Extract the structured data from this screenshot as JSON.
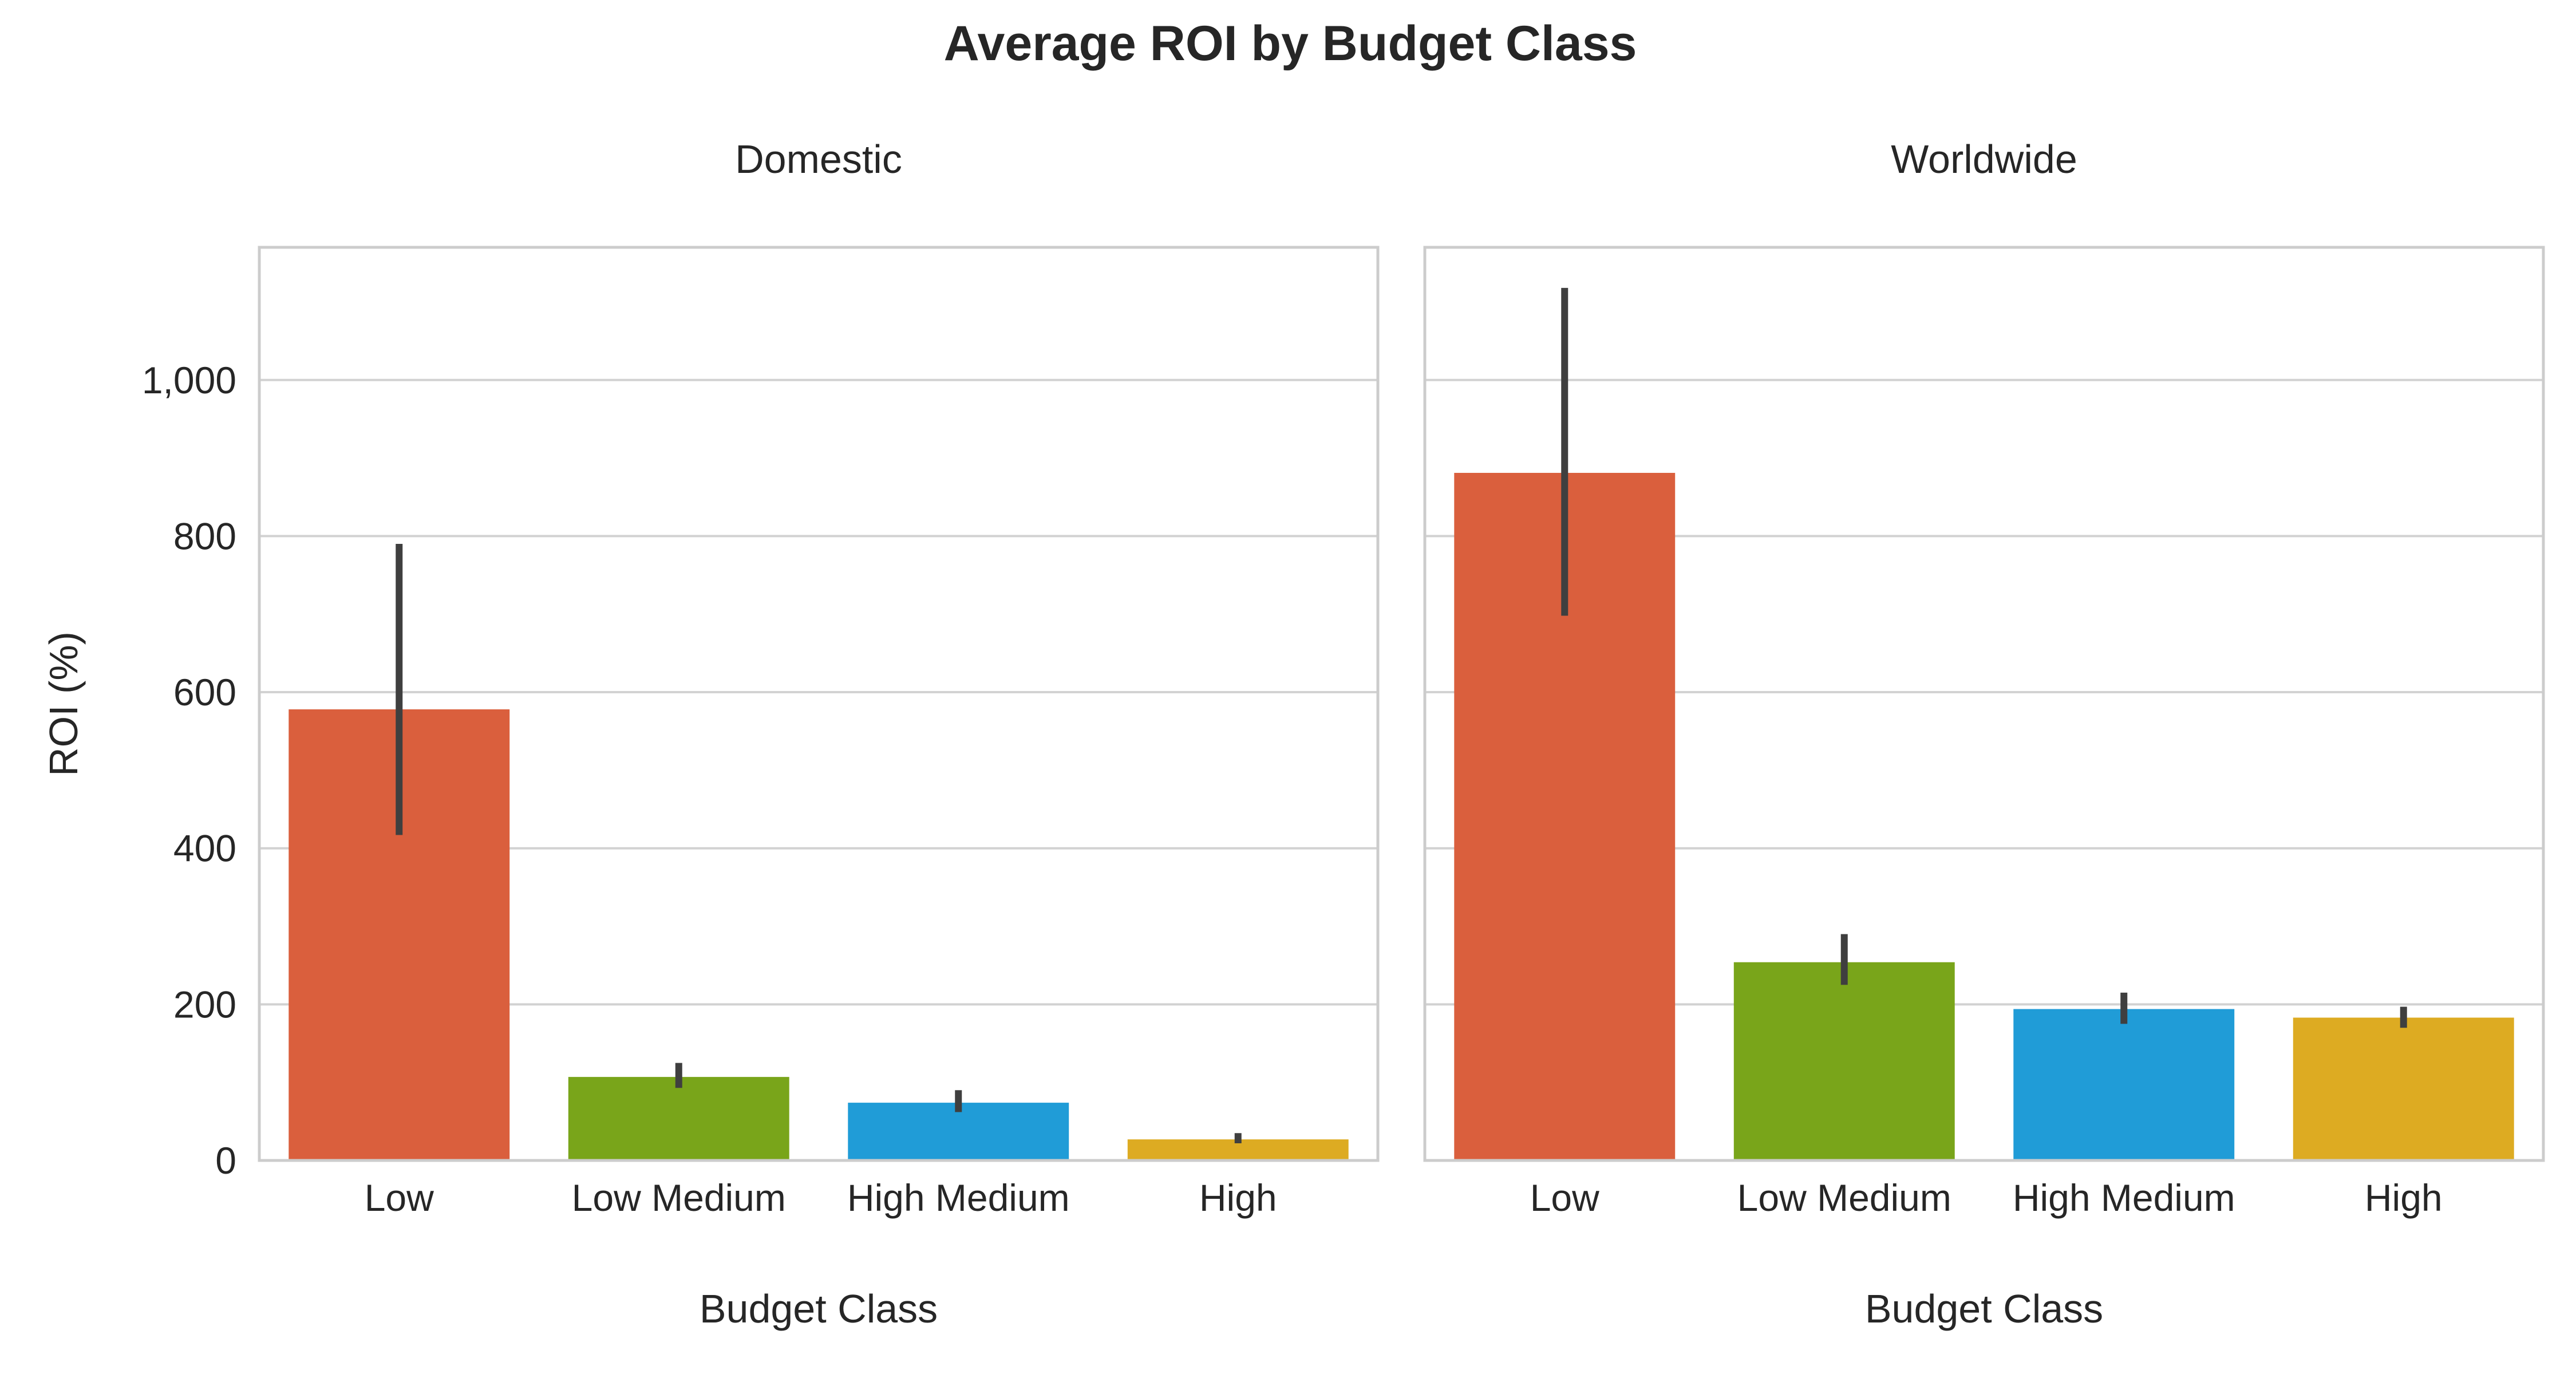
{
  "title": "Average ROI by Budget Class",
  "colors": {
    "Low": "#DA5F3D",
    "Low Medium": "#79A51A",
    "High Medium": "#209CD7",
    "High": "#DDAB22",
    "grid": "#D2D2D2",
    "frame": "#CCCCCC",
    "errorbar": "#3F3F3F",
    "text": "#262626"
  },
  "chart_data": [
    {
      "type": "bar",
      "title": "Domestic",
      "xlabel": "Budget Class",
      "ylabel": "ROI (%)",
      "categories": [
        "Low",
        "Low Medium",
        "High Medium",
        "High"
      ],
      "values": [
        578,
        107,
        74,
        27
      ],
      "error_low": [
        417,
        93,
        62,
        22
      ],
      "error_high": [
        790,
        125,
        90,
        35
      ],
      "ylim": [
        0,
        1170
      ],
      "yticks": [
        0,
        200,
        400,
        600,
        800,
        1000
      ],
      "ytick_labels": [
        "0",
        "200",
        "400",
        "600",
        "800",
        "1,000"
      ],
      "grid": true
    },
    {
      "type": "bar",
      "title": "Worldwide",
      "xlabel": "Budget Class",
      "ylabel": "",
      "categories": [
        "Low",
        "Low Medium",
        "High Medium",
        "High"
      ],
      "values": [
        881,
        254,
        194,
        183
      ],
      "error_low": [
        698,
        225,
        175,
        170
      ],
      "error_high": [
        1118,
        290,
        215,
        197
      ],
      "ylim": [
        0,
        1170
      ],
      "yticks": [
        0,
        200,
        400,
        600,
        800,
        1000
      ],
      "ytick_labels": [],
      "grid": true
    }
  ]
}
